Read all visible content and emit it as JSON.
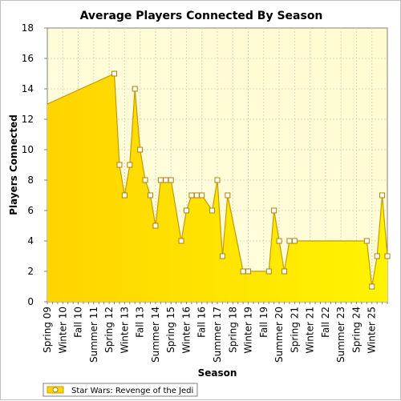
{
  "chart_data": {
    "type": "area",
    "title": "Average Players Connected By Season",
    "xlabel": "Season",
    "ylabel": "Players Connected",
    "ylim": [
      0,
      18
    ],
    "yticks": [
      0,
      2,
      4,
      6,
      8,
      10,
      12,
      14,
      16,
      18
    ],
    "grid": true,
    "legend_position": "bottom-left",
    "x_tick_labels": [
      "Spring 09",
      "Winter 10",
      "Fall 10",
      "Summer 11",
      "Spring 12",
      "Winter 13",
      "Fall 13",
      "Summer 14",
      "Spring 15",
      "Winter 16",
      "Fall 16",
      "Summer 17",
      "Spring 18",
      "Winter 19",
      "Fall 19",
      "Summer 20",
      "Spring 21",
      "Winter 21",
      "Fall 22",
      "Summer 23",
      "Spring 24",
      "Winter 25"
    ],
    "x_tick_positions": [
      0,
      3,
      6,
      9,
      12,
      15,
      18,
      21,
      24,
      27,
      30,
      33,
      36,
      39,
      42,
      45,
      48,
      51,
      54,
      57,
      60,
      63
    ],
    "x_count": 66,
    "series": [
      {
        "name": "Star Wars: Revenge of the Jedi",
        "color": "#ffd700",
        "points": [
          [
            0,
            13
          ],
          [
            13,
            15
          ],
          [
            14,
            9
          ],
          [
            15,
            7
          ],
          [
            16,
            9
          ],
          [
            17,
            14
          ],
          [
            18,
            10
          ],
          [
            19,
            8
          ],
          [
            20,
            7
          ],
          [
            21,
            5
          ],
          [
            22,
            8
          ],
          [
            23,
            8
          ],
          [
            24,
            8
          ],
          [
            26,
            4
          ],
          [
            27,
            6
          ],
          [
            28,
            7
          ],
          [
            29,
            7
          ],
          [
            30,
            7
          ],
          [
            32,
            6
          ],
          [
            33,
            8
          ],
          [
            34,
            3
          ],
          [
            35,
            7
          ],
          [
            38,
            2
          ],
          [
            39,
            2
          ],
          [
            43,
            2
          ],
          [
            44,
            6
          ],
          [
            45,
            4
          ],
          [
            46,
            2
          ],
          [
            47,
            4
          ],
          [
            48,
            4
          ],
          [
            62,
            4
          ],
          [
            63,
            1
          ],
          [
            64,
            3
          ],
          [
            65,
            7
          ],
          [
            66,
            3
          ],
          [
            67,
            2
          ]
        ],
        "marker_points": [
          [
            13,
            15
          ],
          [
            14,
            9
          ],
          [
            15,
            7
          ],
          [
            16,
            9
          ],
          [
            17,
            14
          ],
          [
            18,
            10
          ],
          [
            19,
            8
          ],
          [
            20,
            7
          ],
          [
            21,
            5
          ],
          [
            22,
            8
          ],
          [
            23,
            8
          ],
          [
            24,
            8
          ],
          [
            26,
            4
          ],
          [
            27,
            6
          ],
          [
            28,
            7
          ],
          [
            29,
            7
          ],
          [
            30,
            7
          ],
          [
            32,
            6
          ],
          [
            33,
            8
          ],
          [
            34,
            3
          ],
          [
            35,
            7
          ],
          [
            38,
            2
          ],
          [
            39,
            2
          ],
          [
            43,
            2
          ],
          [
            44,
            6
          ],
          [
            45,
            4
          ],
          [
            46,
            2
          ],
          [
            47,
            4
          ],
          [
            48,
            4
          ],
          [
            62,
            4
          ],
          [
            63,
            1
          ],
          [
            64,
            3
          ],
          [
            65,
            7
          ],
          [
            66,
            3
          ]
        ]
      }
    ]
  }
}
